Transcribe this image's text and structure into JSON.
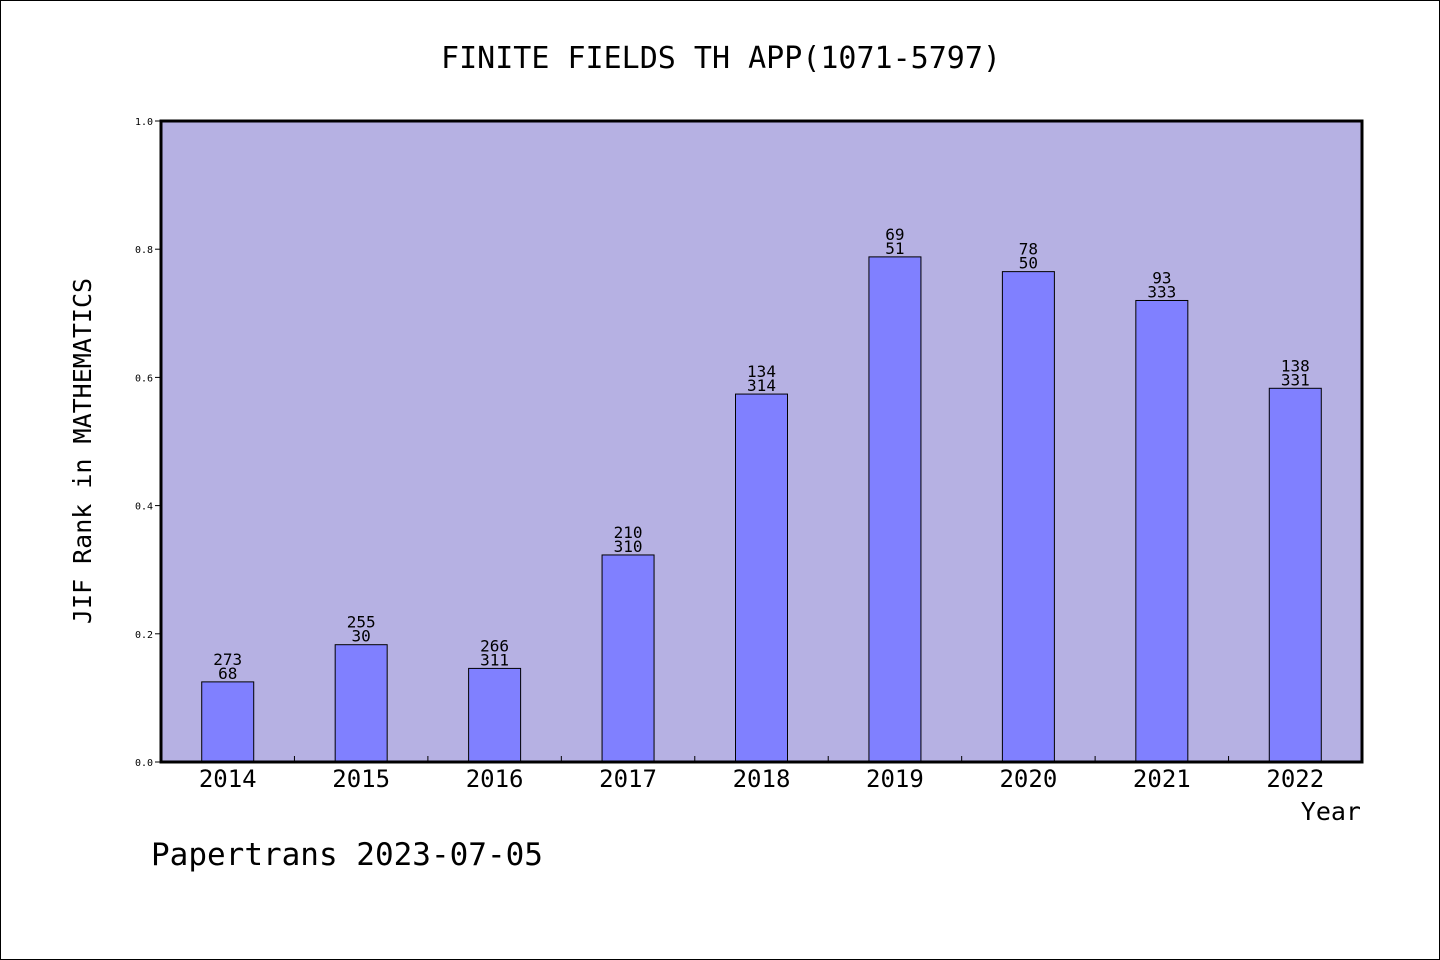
{
  "chart_data": {
    "type": "bar",
    "title": "FINITE FIELDS TH APP(1071-5797)",
    "xlabel": "Year",
    "ylabel": "JIF Rank in MATHEMATICS",
    "ylim": [
      0,
      1.0
    ],
    "y_ticks": [
      "0.0",
      "0.2",
      "0.4",
      "0.6",
      "0.8",
      "1.0"
    ],
    "categories": [
      "2014",
      "2015",
      "2016",
      "2017",
      "2018",
      "2019",
      "2020",
      "2021",
      "2022"
    ],
    "values": [
      0.125,
      0.183,
      0.146,
      0.323,
      0.574,
      0.788,
      0.765,
      0.72,
      0.583
    ],
    "label_top": [
      "273",
      "255",
      "266",
      "210",
      "134",
      "69",
      "78",
      "93",
      "138"
    ],
    "label_bottom": [
      "68",
      "30",
      "311",
      "310",
      "314",
      "51",
      "50",
      "333",
      "331"
    ],
    "grid": false,
    "colors": {
      "plot_background": "#b6b1e3",
      "bar_fill": "#8080ff",
      "bar_stroke": "#000000"
    }
  },
  "footer": {
    "text": "Papertrans 2023-07-05"
  }
}
